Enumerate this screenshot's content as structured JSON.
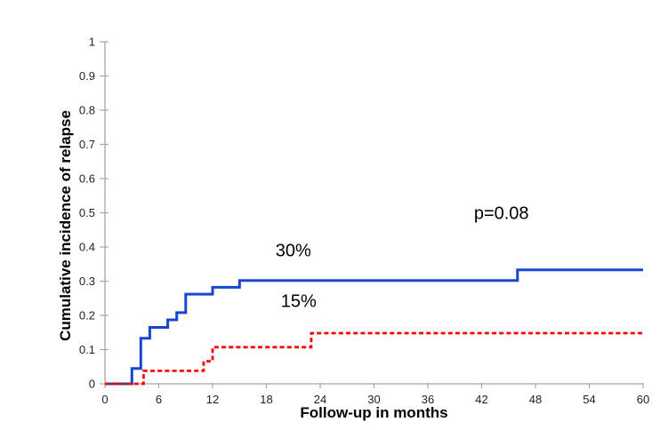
{
  "figure": {
    "background_color": "#ffffff",
    "text_color": "#000000"
  },
  "chart_data": {
    "type": "line",
    "subtype": "step",
    "title": "",
    "xlabel": "Follow-up in months",
    "ylabel": "Cumulative incidence of relapse",
    "xlim": [
      0,
      60
    ],
    "ylim": [
      0,
      1
    ],
    "x_ticks": [
      0,
      6,
      12,
      18,
      24,
      30,
      36,
      42,
      48,
      54,
      60
    ],
    "x_tick_labels": [
      "0",
      "6",
      "12",
      "18",
      "24",
      "30",
      "36",
      "42",
      "48",
      "54",
      "60"
    ],
    "y_ticks": [
      0,
      0.1,
      0.2,
      0.3,
      0.4,
      0.5,
      0.6,
      0.7,
      0.8,
      0.9,
      1
    ],
    "y_tick_labels": [
      "0",
      "0.1",
      "0.2",
      "0.3",
      "0.4",
      "0.5",
      "0.6",
      "0.7",
      "0.8",
      "0.9",
      "1"
    ],
    "grid": false,
    "legend": "none",
    "axis_color": "#A6A6A6",
    "series": [
      {
        "name": "relapse-30-percent-group",
        "label": "30%",
        "color": "#1646D2",
        "line_style": "solid",
        "line_width": 3,
        "dash": [],
        "points": [
          [
            0,
            0
          ],
          [
            3,
            0.045
          ],
          [
            4,
            0.133
          ],
          [
            5,
            0.165
          ],
          [
            7,
            0.187
          ],
          [
            8,
            0.208
          ],
          [
            9,
            0.262
          ],
          [
            12,
            0.282
          ],
          [
            15,
            0.302
          ],
          [
            46,
            0.333
          ],
          [
            60,
            0.333
          ]
        ]
      },
      {
        "name": "relapse-15-percent-group",
        "label": "15%",
        "color": "#FF0000",
        "line_style": "dashed",
        "line_width": 2.8,
        "dash": [
          5,
          3.2
        ],
        "points": [
          [
            0,
            0
          ],
          [
            4.3,
            0.038
          ],
          [
            11,
            0.066
          ],
          [
            12,
            0.107
          ],
          [
            23,
            0.148
          ],
          [
            60,
            0.148
          ]
        ]
      }
    ],
    "annotations": [
      {
        "text": "30%",
        "x": 21.0,
        "y": 0.387
      },
      {
        "text": "15%",
        "x": 21.6,
        "y": 0.24
      },
      {
        "text": "p=0.08",
        "x": 44.2,
        "y": 0.497
      }
    ]
  }
}
